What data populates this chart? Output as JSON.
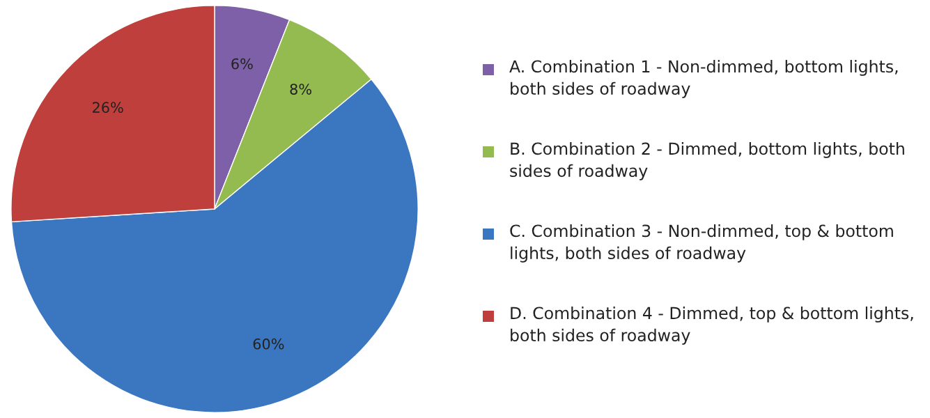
{
  "chart_data": {
    "type": "pie",
    "categories": [
      "A. Combination 1 - Non-dimmed, bottom lights, both sides of roadway",
      "B. Combination 2 - Dimmed, bottom lights, both sides of roadway",
      "C. Combination 3 - Non-dimmed, top & bottom lights, both sides of roadway",
      "D. Combination 4 - Dimmed, top & bottom lights, both sides of roadway"
    ],
    "values": [
      6,
      8,
      60,
      26
    ],
    "value_labels": [
      "6%",
      "8%",
      "60%",
      "26%"
    ],
    "colors": [
      "#7e60a8",
      "#94bb4f",
      "#3b76c0",
      "#bf3f3c"
    ],
    "legend": "right"
  }
}
